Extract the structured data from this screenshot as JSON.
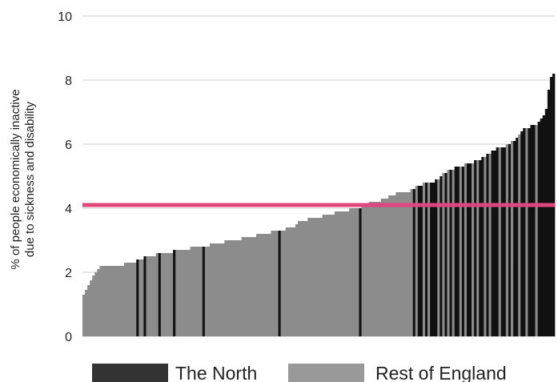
{
  "chart_data": {
    "type": "bar",
    "ylabel": [
      "% of people economically inactive",
      "due to sickness and disability"
    ],
    "xlabel": "",
    "ylim": [
      0,
      10
    ],
    "yticks": [
      "0",
      "2",
      "4",
      "6",
      "8",
      "10"
    ],
    "grid": true,
    "legend_position": "bottom",
    "reference_line": {
      "value": 4.1,
      "color": "#e0457b"
    },
    "series": [
      {
        "name": "The North",
        "color": "#111111",
        "legend_color": "#333333"
      },
      {
        "name": "Rest of England",
        "color": "#8c8c8c",
        "legend_color": "#999999"
      }
    ],
    "sorted_values": [
      1.3,
      1.45,
      1.6,
      1.75,
      1.9,
      2.0,
      2.1,
      2.2,
      2.2,
      2.2,
      2.2,
      2.2,
      2.2,
      2.2,
      2.2,
      2.2,
      2.2,
      2.3,
      2.3,
      2.3,
      2.3,
      2.3,
      2.4,
      2.4,
      2.4,
      2.5,
      2.5,
      2.5,
      2.5,
      2.5,
      2.6,
      2.6,
      2.6,
      2.6,
      2.6,
      2.6,
      2.6,
      2.7,
      2.7,
      2.7,
      2.7,
      2.7,
      2.7,
      2.7,
      2.8,
      2.8,
      2.8,
      2.8,
      2.8,
      2.8,
      2.8,
      2.8,
      2.9,
      2.9,
      2.9,
      2.9,
      2.9,
      2.9,
      3.0,
      3.0,
      3.0,
      3.0,
      3.0,
      3.0,
      3.0,
      3.1,
      3.1,
      3.1,
      3.1,
      3.1,
      3.1,
      3.2,
      3.2,
      3.2,
      3.2,
      3.2,
      3.2,
      3.3,
      3.3,
      3.3,
      3.3,
      3.3,
      3.3,
      3.4,
      3.4,
      3.4,
      3.4,
      3.5,
      3.6,
      3.6,
      3.6,
      3.6,
      3.7,
      3.7,
      3.7,
      3.7,
      3.7,
      3.7,
      3.8,
      3.8,
      3.8,
      3.8,
      3.8,
      3.9,
      3.9,
      3.9,
      3.9,
      3.9,
      3.9,
      4.0,
      4.0,
      4.0,
      4.0,
      4.0,
      4.1,
      4.1,
      4.1,
      4.2,
      4.2,
      4.2,
      4.2,
      4.2,
      4.3,
      4.3,
      4.3,
      4.4,
      4.4,
      4.4,
      4.5,
      4.5,
      4.5,
      4.5,
      4.5,
      4.5,
      4.6,
      4.6,
      4.7,
      4.7,
      4.7,
      4.8,
      4.8,
      4.8,
      4.8,
      4.8,
      4.9,
      4.9,
      5.0,
      5.1,
      5.1,
      5.2,
      5.2,
      5.2,
      5.3,
      5.3,
      5.3,
      5.3,
      5.4,
      5.4,
      5.4,
      5.4,
      5.5,
      5.5,
      5.5,
      5.6,
      5.6,
      5.7,
      5.7,
      5.8,
      5.8,
      5.9,
      5.9,
      5.9,
      5.9,
      6.0,
      6.0,
      6.1,
      6.1,
      6.2,
      6.3,
      6.4,
      6.5,
      6.5,
      6.5,
      6.6,
      6.6,
      6.6,
      6.7,
      6.8,
      6.9,
      7.1,
      7.7,
      8.1,
      8.2
    ],
    "north_flags": [
      0,
      0,
      0,
      0,
      0,
      0,
      0,
      0,
      0,
      0,
      0,
      0,
      0,
      0,
      0,
      0,
      0,
      0,
      0,
      0,
      0,
      0,
      1,
      0,
      0,
      1,
      0,
      0,
      0,
      0,
      0,
      1,
      0,
      0,
      0,
      0,
      0,
      1,
      0,
      0,
      0,
      0,
      0,
      0,
      0,
      0,
      0,
      0,
      0,
      1,
      0,
      0,
      0,
      0,
      0,
      0,
      0,
      0,
      0,
      0,
      0,
      0,
      0,
      0,
      0,
      0,
      0,
      0,
      0,
      0,
      0,
      0,
      0,
      0,
      0,
      0,
      0,
      0,
      0,
      0,
      1,
      0,
      0,
      0,
      0,
      0,
      0,
      0,
      0,
      0,
      0,
      0,
      0,
      0,
      0,
      0,
      0,
      0,
      0,
      0,
      0,
      0,
      0,
      0,
      0,
      0,
      0,
      0,
      0,
      0,
      0,
      0,
      0,
      1,
      0,
      0,
      0,
      0,
      0,
      0,
      0,
      0,
      0,
      0,
      0,
      0,
      0,
      0,
      0,
      0,
      0,
      0,
      0,
      0,
      0,
      1,
      0,
      1,
      1,
      0,
      1,
      0,
      1,
      1,
      1,
      0,
      1,
      0,
      1,
      0,
      1,
      0,
      1,
      1,
      0,
      1,
      0,
      1,
      1,
      0,
      1,
      0,
      1,
      1,
      0,
      1,
      0,
      1,
      1,
      1,
      0,
      1,
      1,
      0,
      1,
      0,
      1,
      1,
      0,
      1,
      1,
      0,
      1,
      1,
      1,
      0,
      1,
      1,
      1,
      1,
      1,
      1,
      1,
      1
    ]
  }
}
